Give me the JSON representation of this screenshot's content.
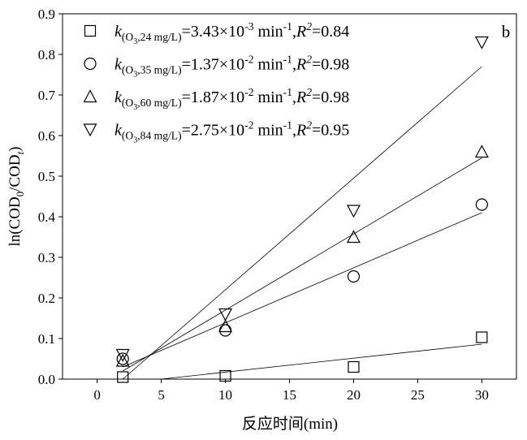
{
  "chart_data": {
    "type": "scatter",
    "panel_label": "b",
    "x_label": "反应时间(min)",
    "y_label_parts": [
      {
        "text": "ln(COD",
        "style": "normal"
      },
      {
        "text": "0",
        "style": "sub"
      },
      {
        "text": "/COD",
        "style": "normal"
      },
      {
        "text": "t",
        "style": "subitalic"
      },
      {
        "text": ")",
        "style": "normal"
      }
    ],
    "xlim": [
      -2.7,
      32.7
    ],
    "ylim": [
      0,
      0.9
    ],
    "xticks": [
      0,
      5,
      10,
      15,
      20,
      25,
      30
    ],
    "yticks": [
      {
        "value": 0,
        "label": "0.0"
      },
      0.1,
      0.2,
      0.3,
      0.4,
      0.5,
      0.6,
      0.7,
      0.8,
      0.9
    ],
    "color": "#000000",
    "series": [
      {
        "marker": "square",
        "name_parts": [
          {
            "text": "k",
            "style": "italic"
          },
          {
            "text": "(O",
            "style": "sub"
          },
          {
            "text": "3",
            "style": "sub2"
          },
          {
            "text": ",24 mg/L)",
            "style": "sub"
          },
          {
            "text": "=3.43×10",
            "style": "normal"
          },
          {
            "text": "-3",
            "style": "sup"
          },
          {
            "text": " min",
            "style": "normal"
          },
          {
            "text": "-1",
            "style": "sup"
          },
          {
            "text": ",",
            "style": "normal"
          },
          {
            "text": "R",
            "style": "italic"
          },
          {
            "text": "2",
            "style": "supitalic"
          },
          {
            "text": "=0.84",
            "style": "normal"
          }
        ],
        "x": [
          2,
          10,
          20,
          30
        ],
        "values": [
          0.005,
          0.008,
          0.03,
          0.103
        ],
        "fit": {
          "x": [
            5,
            30
          ],
          "y": [
            0,
            0.086
          ]
        }
      },
      {
        "marker": "circle",
        "name_parts": [
          {
            "text": "k",
            "style": "italic"
          },
          {
            "text": "(O",
            "style": "sub"
          },
          {
            "text": "3",
            "style": "sub2"
          },
          {
            "text": ",35 mg/L)",
            "style": "sub"
          },
          {
            "text": "=1.37×10",
            "style": "normal"
          },
          {
            "text": "-2",
            "style": "sup"
          },
          {
            "text": " min",
            "style": "normal"
          },
          {
            "text": "-1",
            "style": "sup"
          },
          {
            "text": ",",
            "style": "normal"
          },
          {
            "text": "R",
            "style": "italic"
          },
          {
            "text": "2",
            "style": "supitalic"
          },
          {
            "text": "=0.98",
            "style": "normal"
          }
        ],
        "x": [
          2,
          10,
          20,
          30
        ],
        "values": [
          0.05,
          0.12,
          0.253,
          0.43
        ],
        "fit": {
          "x": [
            2,
            30
          ],
          "y": [
            0.03,
            0.41
          ]
        }
      },
      {
        "marker": "triangle-up",
        "name_parts": [
          {
            "text": "k",
            "style": "italic"
          },
          {
            "text": "(O",
            "style": "sub"
          },
          {
            "text": "3",
            "style": "sub2"
          },
          {
            "text": ",60 mg/L)",
            "style": "sub"
          },
          {
            "text": "=1.87×10",
            "style": "normal"
          },
          {
            "text": "-2",
            "style": "sup"
          },
          {
            "text": " min",
            "style": "normal"
          },
          {
            "text": "-1",
            "style": "sup"
          },
          {
            "text": ",",
            "style": "normal"
          },
          {
            "text": "R",
            "style": "italic"
          },
          {
            "text": "2",
            "style": "supitalic"
          },
          {
            "text": "=0.98",
            "style": "normal"
          }
        ],
        "x": [
          2,
          10,
          20,
          30
        ],
        "values": [
          0.045,
          0.13,
          0.35,
          0.56
        ],
        "fit": {
          "x": [
            2,
            30
          ],
          "y": [
            0.02,
            0.545
          ]
        }
      },
      {
        "marker": "triangle-down",
        "name_parts": [
          {
            "text": "k",
            "style": "italic"
          },
          {
            "text": "(O",
            "style": "sub"
          },
          {
            "text": "3",
            "style": "sub2"
          },
          {
            "text": ",84 mg/L)",
            "style": "sub"
          },
          {
            "text": "=2.75×10",
            "style": "normal"
          },
          {
            "text": "-2",
            "style": "sup"
          },
          {
            "text": " min",
            "style": "normal"
          },
          {
            "text": "-1",
            "style": "sup"
          },
          {
            "text": ",",
            "style": "normal"
          },
          {
            "text": "R",
            "style": "italic"
          },
          {
            "text": "2",
            "style": "supitalic"
          },
          {
            "text": "=0.95",
            "style": "normal"
          }
        ],
        "x": [
          2,
          10,
          20,
          30
        ],
        "values": [
          0.06,
          0.16,
          0.415,
          0.83
        ],
        "fit": {
          "x": [
            2,
            30
          ],
          "y": [
            0.0,
            0.77
          ]
        }
      }
    ]
  }
}
